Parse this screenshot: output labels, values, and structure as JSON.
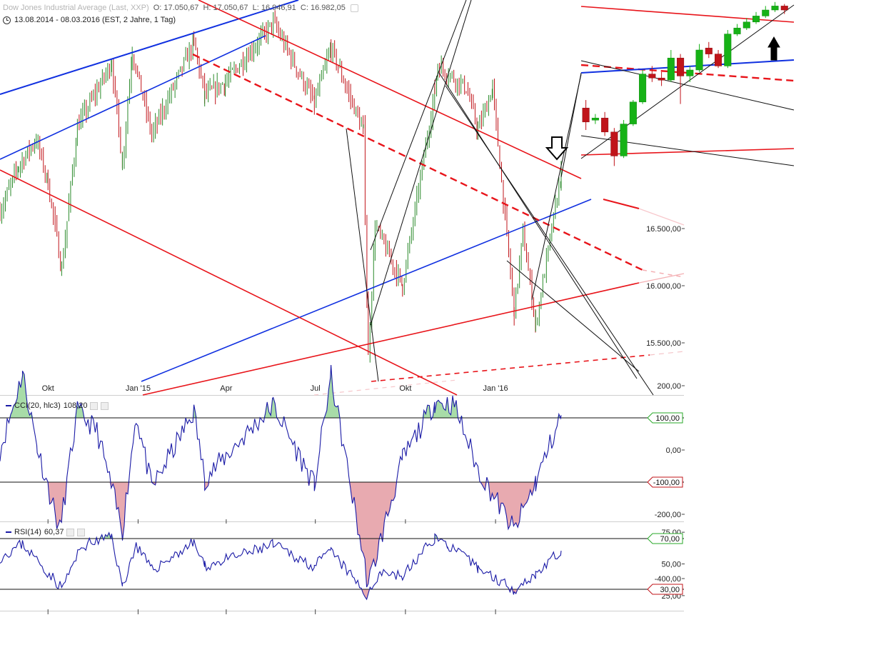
{
  "header": {
    "instrument": "Dow Jones Industrial Average (Last, XXP)",
    "open": "O: 17.050,67",
    "high": "H: 17.050,67",
    "low": "L: 16.946,91",
    "close": "C: 16.982,05",
    "range": "13.08.2014 - 08.03.2016 (EST, 2 Jahre, 1 Tag)"
  },
  "indicators": {
    "cci_label": "CCI(20, hlc3)",
    "cci_value": "108,20",
    "rsi_label": "RSI(14)",
    "rsi_value": "60,37"
  },
  "colors": {
    "up": "#16b216",
    "down": "#c0141a",
    "price": "#2a8a2a",
    "trend_red": "#e8141a",
    "trend_blue": "#1030e0",
    "trend_black": "#111111",
    "indicator": "#1a1aa6",
    "overbought_fill": "#a8dca8",
    "oversold_fill": "#e8aab0"
  },
  "chart_data": [
    {
      "type": "candlestick",
      "title": "Dow Jones Industrial Average (Last, XXP)",
      "x_tick_labels": [
        "Okt",
        "Jan '15",
        "Apr",
        "Jul",
        "Okt",
        "Jan '16"
      ],
      "y_tick_labels": [
        "16.500,00",
        "16.000,00",
        "15.500,00"
      ],
      "ylim": [
        15200,
        18300
      ],
      "close_path": [
        [
          "2014-08-13",
          16650
        ],
        [
          "2014-09-01",
          17050
        ],
        [
          "2014-09-19",
          17280
        ],
        [
          "2014-10-01",
          16900
        ],
        [
          "2014-10-15",
          16140
        ],
        [
          "2014-10-31",
          17390
        ],
        [
          "2014-12-05",
          17950
        ],
        [
          "2014-12-16",
          17070
        ],
        [
          "2014-12-26",
          18050
        ],
        [
          "2015-01-15",
          17320
        ],
        [
          "2015-02-27",
          18130
        ],
        [
          "2015-03-10",
          17660
        ],
        [
          "2015-03-31",
          17780
        ],
        [
          "2015-05-19",
          18300
        ],
        [
          "2015-06-30",
          17600
        ],
        [
          "2015-07-17",
          18080
        ],
        [
          "2015-08-19",
          17350
        ],
        [
          "2015-08-24",
          15370
        ],
        [
          "2015-08-31",
          16530
        ],
        [
          "2015-09-28",
          16000
        ],
        [
          "2015-10-31",
          17700
        ],
        [
          "2015-11-03",
          17930
        ],
        [
          "2015-12-02",
          17730
        ],
        [
          "2015-12-14",
          17360
        ],
        [
          "2015-12-29",
          17720
        ],
        [
          "2016-01-20",
          15770
        ],
        [
          "2016-01-29",
          16460
        ],
        [
          "2016-02-11",
          15660
        ],
        [
          "2016-03-08",
          16980
        ]
      ],
      "inset_candles_note": "zoomed daily candles of the latest sessions, upper right",
      "inset_candles": [
        {
          "dir": "down",
          "o": 0.54,
          "c": 0.61,
          "h": 0.5,
          "l": 0.65
        },
        {
          "dir": "up",
          "o": 0.6,
          "c": 0.59,
          "h": 0.57,
          "l": 0.62
        },
        {
          "dir": "down",
          "o": 0.59,
          "c": 0.66,
          "h": 0.56,
          "l": 0.68
        },
        {
          "dir": "down",
          "o": 0.66,
          "c": 0.78,
          "h": 0.64,
          "l": 0.83
        },
        {
          "dir": "up",
          "o": 0.78,
          "c": 0.62,
          "h": 0.6,
          "l": 0.79
        },
        {
          "dir": "up",
          "o": 0.62,
          "c": 0.51,
          "h": 0.5,
          "l": 0.63
        },
        {
          "dir": "up",
          "o": 0.51,
          "c": 0.37,
          "h": 0.35,
          "l": 0.52
        },
        {
          "dir": "down",
          "o": 0.37,
          "c": 0.39,
          "h": 0.33,
          "l": 0.41
        },
        {
          "dir": "down",
          "o": 0.39,
          "c": 0.4,
          "h": 0.36,
          "l": 0.43
        },
        {
          "dir": "up",
          "o": 0.4,
          "c": 0.29,
          "h": 0.25,
          "l": 0.41
        },
        {
          "dir": "down",
          "o": 0.29,
          "c": 0.38,
          "h": 0.27,
          "l": 0.52
        },
        {
          "dir": "up",
          "o": 0.38,
          "c": 0.35,
          "h": 0.33,
          "l": 0.41
        },
        {
          "dir": "up",
          "o": 0.35,
          "c": 0.25,
          "h": 0.22,
          "l": 0.36
        },
        {
          "dir": "down",
          "o": 0.24,
          "c": 0.27,
          "h": 0.21,
          "l": 0.29
        },
        {
          "dir": "down",
          "o": 0.27,
          "c": 0.33,
          "h": 0.25,
          "l": 0.34
        },
        {
          "dir": "up",
          "o": 0.33,
          "c": 0.17,
          "h": 0.15,
          "l": 0.34
        },
        {
          "dir": "up",
          "o": 0.17,
          "c": 0.14,
          "h": 0.12,
          "l": 0.18
        },
        {
          "dir": "up",
          "o": 0.14,
          "c": 0.11,
          "h": 0.09,
          "l": 0.15
        },
        {
          "dir": "up",
          "o": 0.11,
          "c": 0.08,
          "h": 0.06,
          "l": 0.12
        },
        {
          "dir": "up",
          "o": 0.08,
          "c": 0.05,
          "h": 0.03,
          "l": 0.09
        },
        {
          "dir": "up",
          "o": 0.05,
          "c": 0.03,
          "h": 0.01,
          "l": 0.06
        },
        {
          "dir": "down",
          "o": 0.03,
          "c": 0.05,
          "h": 0.02,
          "l": 0.07
        }
      ]
    },
    {
      "type": "line",
      "title": "CCI(20, hlc3)",
      "y_tick_labels": [
        "200,00",
        "100,00",
        "0,00",
        "-100,00",
        "-200,00",
        "-400,00"
      ],
      "reference_levels": [
        100,
        -100
      ],
      "ylim": [
        -430,
        270
      ],
      "path": [
        [
          "2014-08-13",
          0
        ],
        [
          "2014-08-25",
          120
        ],
        [
          "2014-09-05",
          240
        ],
        [
          "2014-09-20",
          10
        ],
        [
          "2014-10-13",
          -250
        ],
        [
          "2014-10-31",
          120
        ],
        [
          "2014-11-20",
          60
        ],
        [
          "2014-12-16",
          -250
        ],
        [
          "2014-12-30",
          110
        ],
        [
          "2015-01-15",
          -120
        ],
        [
          "2015-02-27",
          120
        ],
        [
          "2015-03-10",
          -90
        ],
        [
          "2015-05-19",
          140
        ],
        [
          "2015-06-30",
          -110
        ],
        [
          "2015-07-17",
          230
        ],
        [
          "2015-08-24",
          -420
        ],
        [
          "2015-09-28",
          -30
        ],
        [
          "2015-10-31",
          150
        ],
        [
          "2015-11-20",
          140
        ],
        [
          "2015-12-14",
          -60
        ],
        [
          "2016-01-20",
          -250
        ],
        [
          "2016-02-11",
          -100
        ],
        [
          "2016-03-08",
          108
        ]
      ]
    },
    {
      "type": "line",
      "title": "RSI(14)",
      "y_tick_labels": [
        "75,00",
        "70,00",
        "50,00",
        "30,00",
        "25,00"
      ],
      "reference_levels": [
        70,
        30
      ],
      "ylim": [
        22,
        76
      ],
      "path": [
        [
          "2014-08-13",
          55
        ],
        [
          "2014-09-05",
          66
        ],
        [
          "2014-10-15",
          31
        ],
        [
          "2014-11-05",
          64
        ],
        [
          "2014-12-05",
          72
        ],
        [
          "2014-12-16",
          32
        ],
        [
          "2014-12-30",
          65
        ],
        [
          "2015-01-15",
          45
        ],
        [
          "2015-02-27",
          67
        ],
        [
          "2015-03-10",
          48
        ],
        [
          "2015-05-19",
          65
        ],
        [
          "2015-06-30",
          48
        ],
        [
          "2015-07-17",
          60
        ],
        [
          "2015-08-24",
          24
        ],
        [
          "2015-09-05",
          45
        ],
        [
          "2015-09-28",
          40
        ],
        [
          "2015-10-31",
          71
        ],
        [
          "2015-11-13",
          65
        ],
        [
          "2015-12-14",
          47
        ],
        [
          "2016-01-20",
          30
        ],
        [
          "2016-02-11",
          42
        ],
        [
          "2016-03-08",
          60.37
        ]
      ]
    }
  ],
  "y_axis_boxes": {
    "cci_upper": "100,00",
    "cci_lower": "-100,00",
    "rsi_upper": "70,00",
    "rsi_lower": "30,00"
  }
}
